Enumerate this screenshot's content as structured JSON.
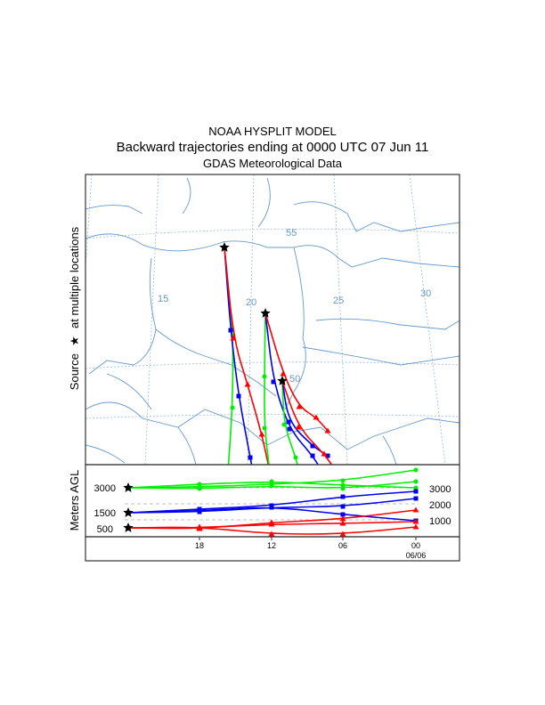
{
  "header": {
    "line1": "NOAA HYSPLIT MODEL",
    "line2": "Backward trajectories ending at 0000 UTC 07 Jun 11",
    "line3": "GDAS Meteorological Data"
  },
  "side_labels": {
    "source_prefix": "Source",
    "source_suffix": "at multiple locations",
    "source_symbol": "★",
    "height_axis": "Meters AGL"
  },
  "map": {
    "longitude_labels": [
      "15",
      "20",
      "25",
      "30"
    ],
    "latitude_labels": [
      "55",
      "50"
    ]
  },
  "height_panel": {
    "left_ticks": [
      "3000",
      "1500",
      "500"
    ],
    "right_ticks": [
      "3000",
      "2000",
      "1000"
    ],
    "time_ticks": [
      "18",
      "12",
      "06",
      "00"
    ],
    "date_label": "06/06"
  },
  "colors": {
    "green": "#00ee00",
    "blue": "#0000ee",
    "red": "#ff0000",
    "map_lines": "#6699cc"
  }
}
